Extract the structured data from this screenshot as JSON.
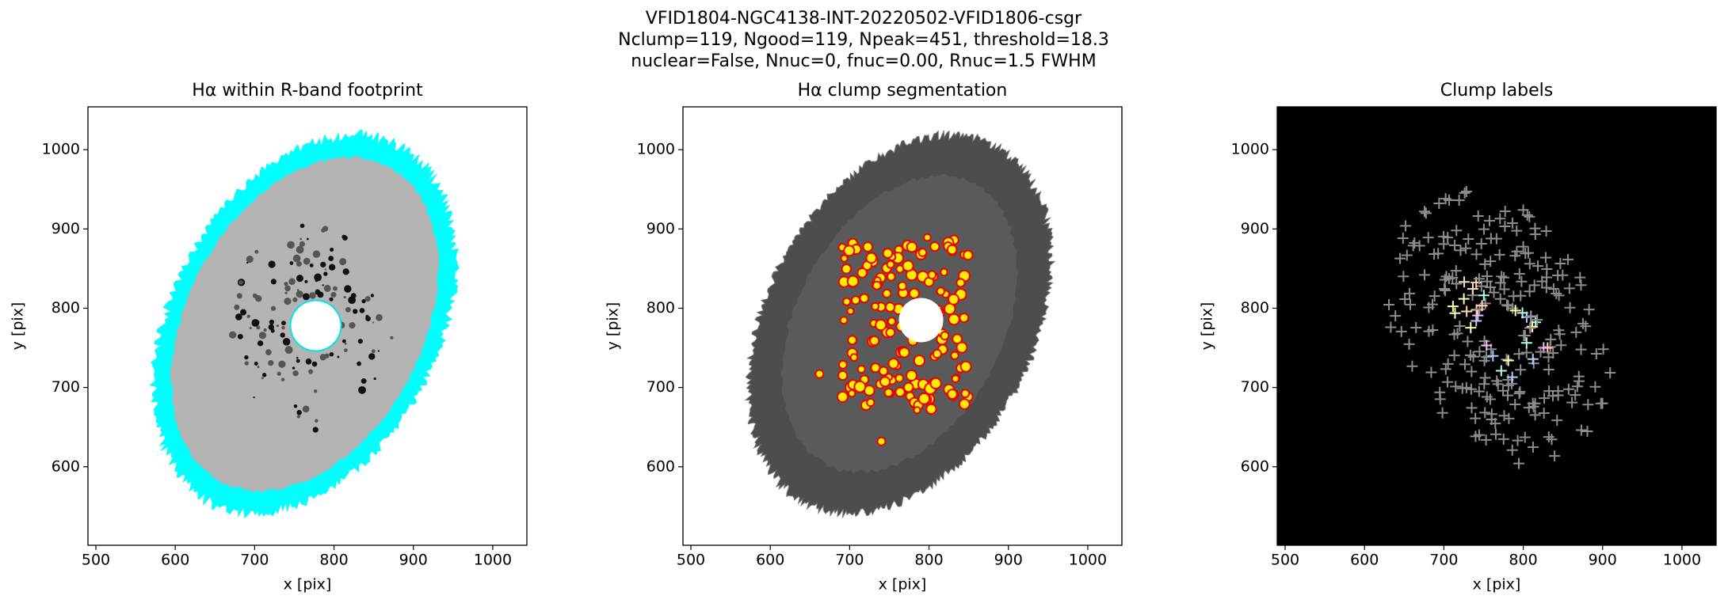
{
  "title_lines": [
    "VFID1804-NGC4138-INT-20220502-VFID1806-csgr",
    "Nclump=119, Ngood=119, Npeak=451, threshold=18.3",
    "nuclear=False, Nnuc=0, fnuc=0.00, Rnuc=1.5 FWHM"
  ],
  "chart_data": [
    {
      "type": "image",
      "title": "Hα within R-band footprint",
      "xlabel": "x [pix]",
      "ylabel": "y [pix]",
      "xlim": [
        490,
        1043
      ],
      "ylim": [
        501,
        1054
      ],
      "xticks": [
        500,
        600,
        700,
        800,
        900,
        1000
      ],
      "yticks": [
        600,
        700,
        800,
        900,
        1000
      ]
    },
    {
      "type": "image",
      "title": "Hα clump segmentation",
      "xlabel": "x [pix]",
      "ylabel": "y [pix]",
      "xlim": [
        490,
        1043
      ],
      "ylim": [
        501,
        1054
      ],
      "xticks": [
        500,
        600,
        700,
        800,
        900,
        1000
      ],
      "yticks": [
        600,
        700,
        800,
        900,
        1000
      ]
    },
    {
      "type": "image",
      "title": "Clump labels",
      "xlabel": "x [pix]",
      "ylabel": "y [pix]",
      "xlim": [
        490,
        1043
      ],
      "ylim": [
        501,
        1054
      ],
      "xticks": [
        500,
        600,
        700,
        800,
        900,
        1000
      ],
      "yticks": [
        600,
        700,
        800,
        900,
        1000
      ]
    }
  ]
}
